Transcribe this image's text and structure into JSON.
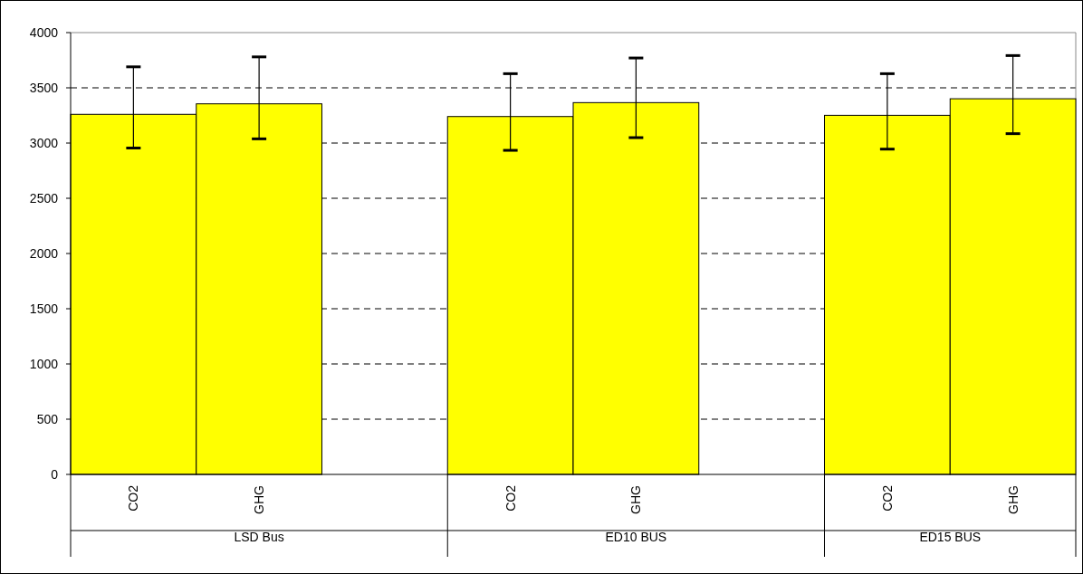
{
  "chart_data": {
    "type": "bar",
    "categories": [
      "CO2",
      "GHG",
      null,
      "CO2",
      "GHG",
      null,
      "CO2",
      "GHG"
    ],
    "values": [
      3260,
      3355,
      null,
      3240,
      3366,
      null,
      3251,
      3401
    ],
    "errors": [
      [
        2955,
        3690
      ],
      [
        3038,
        3780
      ],
      null,
      [
        2934,
        3628
      ],
      [
        3049,
        3770
      ],
      null,
      [
        2945,
        3628
      ],
      [
        3085,
        3792
      ]
    ],
    "color": "#ffff00",
    "ylim": [
      0,
      4000
    ],
    "yticks": [
      0,
      500,
      1000,
      1500,
      2000,
      2500,
      3000,
      3500,
      4000
    ],
    "grid": "y",
    "annotations": [
      "LSD Bus",
      "ED10 BUS",
      "ED15 BUS"
    ]
  }
}
